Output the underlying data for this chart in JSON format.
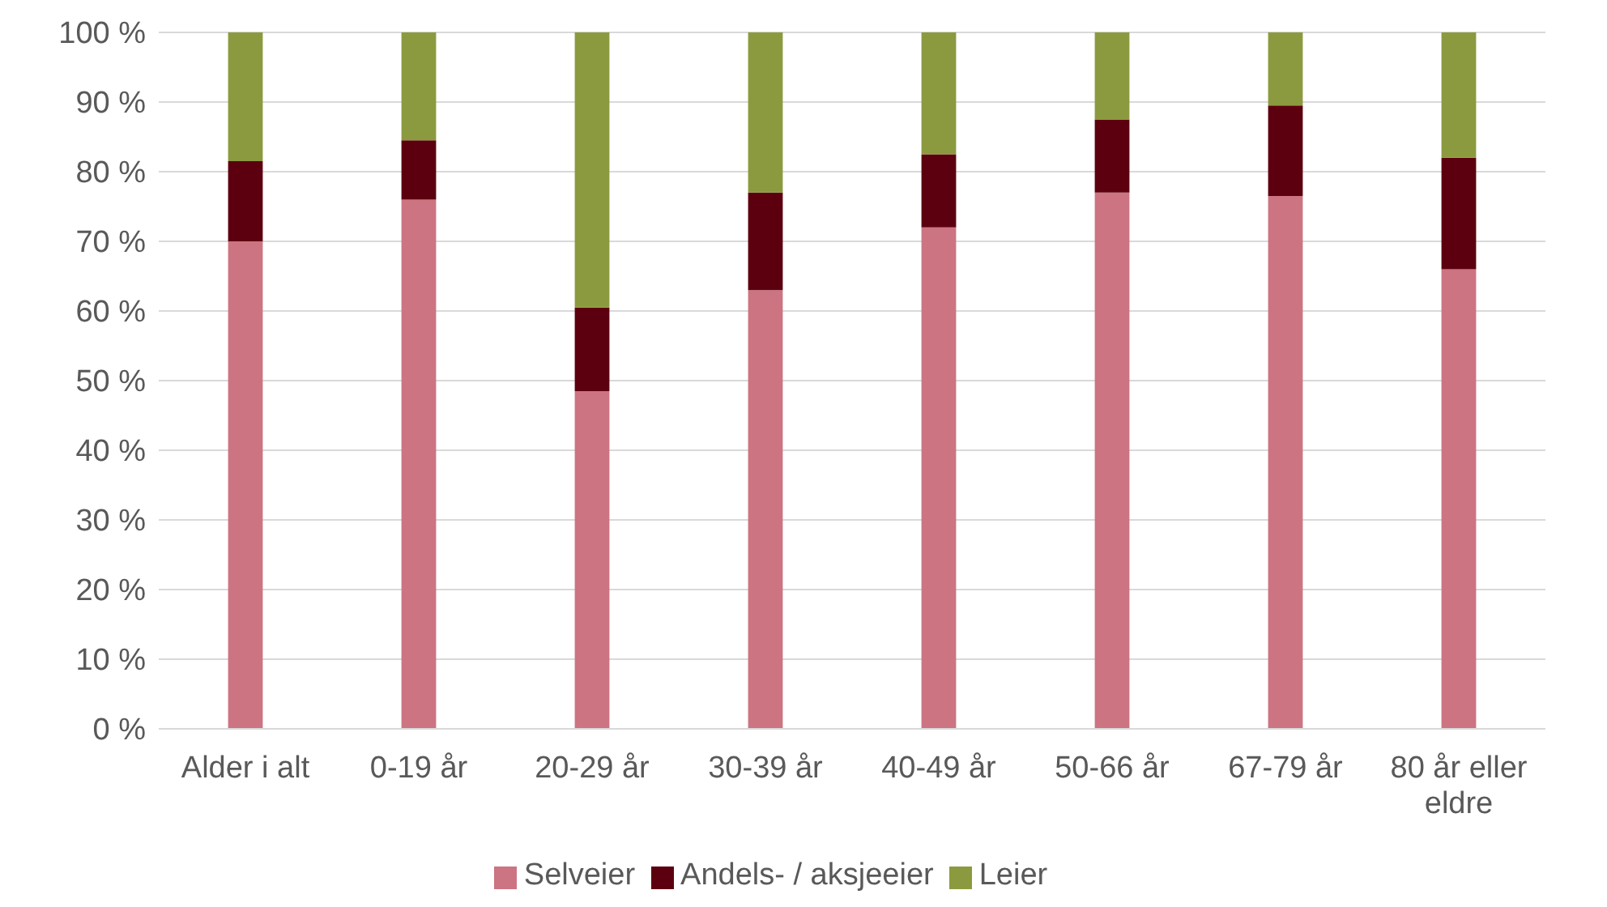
{
  "chart_data": {
    "type": "bar",
    "stacked": true,
    "categories": [
      "Alder i alt",
      "0-19 år",
      "20-29 år",
      "30-39 år",
      "40-49 år",
      "50-66 år",
      "67-79 år",
      "80 år eller eldre"
    ],
    "series": [
      {
        "name": "Selveier",
        "color": "#cc7482",
        "values": [
          70,
          76,
          48.5,
          63,
          72,
          77,
          76.5,
          66
        ]
      },
      {
        "name": "Andels- / aksjeeier",
        "color": "#5c000f",
        "values": [
          11.5,
          8.5,
          12,
          14,
          10.5,
          10.5,
          13,
          16
        ]
      },
      {
        "name": "Leier",
        "color": "#8c9a3f",
        "values": [
          18.5,
          15.5,
          39.5,
          23,
          17.5,
          12.5,
          10.5,
          18
        ]
      }
    ],
    "ylim": [
      0,
      100
    ],
    "yticks": [
      {
        "value": 0,
        "label": "0 %"
      },
      {
        "value": 10,
        "label": "10 %"
      },
      {
        "value": 20,
        "label": "20 %"
      },
      {
        "value": 30,
        "label": "30 %"
      },
      {
        "value": 40,
        "label": "40 %"
      },
      {
        "value": 50,
        "label": "50 %"
      },
      {
        "value": 60,
        "label": "60 %"
      },
      {
        "value": 70,
        "label": "70 %"
      },
      {
        "value": 80,
        "label": "80 %"
      },
      {
        "value": 90,
        "label": "90 %"
      },
      {
        "value": 100,
        "label": "100 %"
      }
    ],
    "grid": "y",
    "legend": "bottom"
  }
}
